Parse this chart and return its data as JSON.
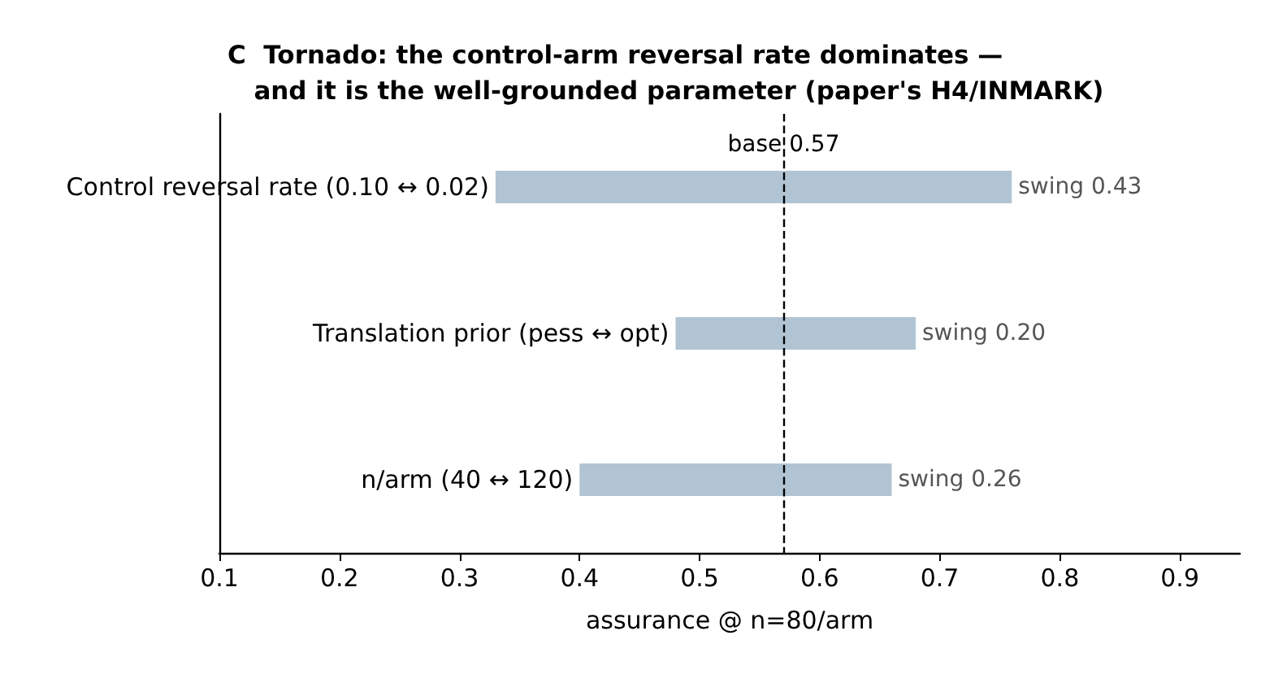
{
  "chart_data": {
    "type": "bar",
    "orientation": "horizontal",
    "title": "C  Tornado: the control-arm reversal rate dominates —\n   and it is the well-grounded parameter (paper's H4/INMARK)",
    "xlabel": "assurance @ n=80/arm",
    "categories": [
      "Control reversal rate (0.10 ↔ 0.02)",
      "Translation prior (pess ↔ opt)",
      "n/arm (40 ↔ 120)"
    ],
    "base": [
      0.33,
      0.48,
      0.4
    ],
    "values": [
      0.43,
      0.2,
      0.26
    ],
    "value_labels": [
      "swing 0.43",
      "swing 0.20",
      "swing 0.26"
    ],
    "color": "#b0c4d4",
    "xlim": [
      0.1,
      0.95
    ],
    "xticks": [
      0.1,
      0.2,
      0.3,
      0.4,
      0.5,
      0.6,
      0.7,
      0.8,
      0.9
    ],
    "ref_lines": [
      {
        "axis": "x",
        "value": 0.57,
        "label": "base 0.57",
        "line_style": "dashed",
        "color": "#000000"
      }
    ],
    "grid": false
  }
}
